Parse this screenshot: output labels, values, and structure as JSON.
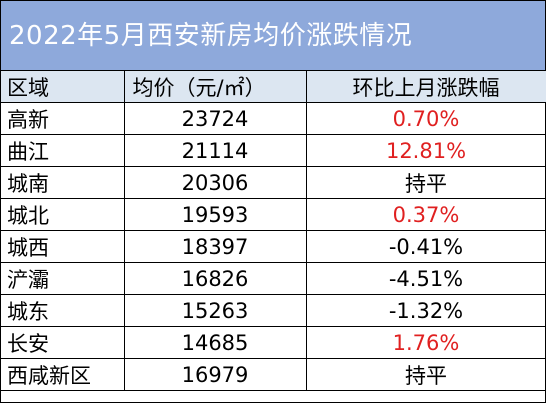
{
  "title": "2022年5月西安新房均价涨跌情况",
  "headers": [
    "区域",
    "均价（元/㎡）",
    "环比上月涨跌幅"
  ],
  "rows": [
    {
      "region": "高新",
      "price": "23724",
      "change": "0.70%",
      "color": "#e02020"
    },
    {
      "region": "曲江",
      "price": "21114",
      "change": "12.81%",
      "color": "#e02020"
    },
    {
      "region": "城南",
      "price": "20306",
      "change": "持平",
      "color": "#000000"
    },
    {
      "region": "城北",
      "price": "19593",
      "change": "0.37%",
      "color": "#e02020"
    },
    {
      "region": "城西",
      "price": "18397",
      "change": "-0.41%",
      "color": "#000000"
    },
    {
      "region": "浐灞",
      "price": "16826",
      "change": "-4.51%",
      "color": "#000000"
    },
    {
      "region": "城东",
      "price": "15263",
      "change": "-1.32%",
      "color": "#000000"
    },
    {
      "region": "长安",
      "price": "14685",
      "change": "1.76%",
      "color": "#e02020"
    },
    {
      "region": "西咸新区",
      "price": "16979",
      "change": "持平",
      "color": "#000000"
    }
  ]
}
